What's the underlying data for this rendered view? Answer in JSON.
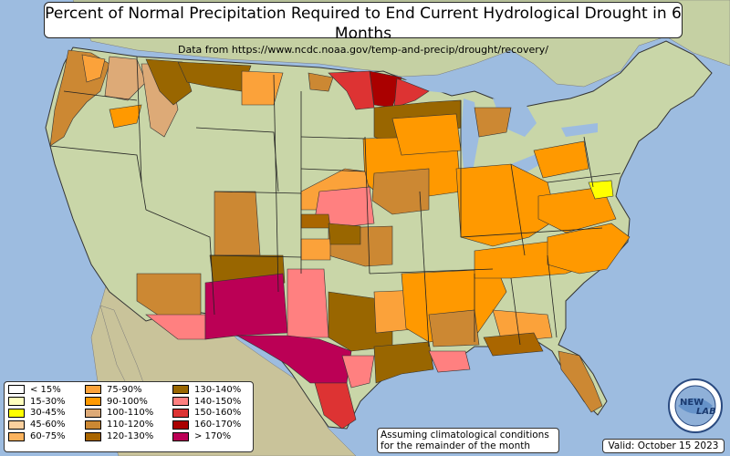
{
  "header": {
    "title": "Percent of Normal Precipitation Required to End Current Hydrological Drought in 6 Months",
    "subtitle": "Data from https://www.ncdc.noaa.gov/temp-and-precip/drought/recovery/"
  },
  "legend": {
    "items": [
      {
        "label": "< 15%",
        "color": "#ffffff"
      },
      {
        "label": "15-30%",
        "color": "#ffffbe"
      },
      {
        "label": "30-45%",
        "color": "#ffff00"
      },
      {
        "label": "45-60%",
        "color": "#fbd09e"
      },
      {
        "label": "60-75%",
        "color": "#fcb35e"
      },
      {
        "label": "75-90%",
        "color": "#fba23a"
      },
      {
        "label": "90-100%",
        "color": "#ff9900"
      },
      {
        "label": "100-110%",
        "color": "#ddaa77"
      },
      {
        "label": "110-120%",
        "color": "#cc8833"
      },
      {
        "label": "120-130%",
        "color": "#aa6600"
      },
      {
        "label": "130-140%",
        "color": "#996600"
      },
      {
        "label": "140-150%",
        "color": "#ff8080"
      },
      {
        "label": "150-160%",
        "color": "#dd3333"
      },
      {
        "label": "160-170%",
        "color": "#aa0000"
      },
      {
        "label": "> 170%",
        "color": "#bb0055"
      }
    ]
  },
  "notes": {
    "assumption": "Assuming climatological conditions for the remainder of the month",
    "valid": "Valid: October 15 2023"
  },
  "logo": {
    "text_left": "NEW",
    "text_right": "LAB"
  },
  "colors": {
    "ocean": "#9dbce0",
    "land": "#c9d6a8",
    "border": "#000000"
  }
}
